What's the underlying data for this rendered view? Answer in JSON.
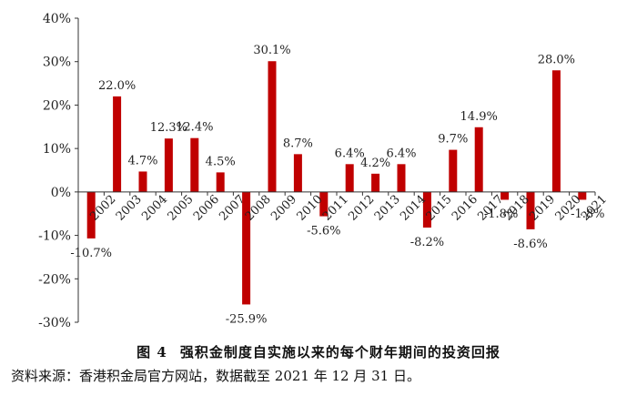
{
  "chart_data": {
    "type": "bar",
    "categories": [
      "2002",
      "2003",
      "2004",
      "2005",
      "2006",
      "2007",
      "2008",
      "2009",
      "2010",
      "2011",
      "2012",
      "2013",
      "2014",
      "2015",
      "2016",
      "2017",
      "2018",
      "2019",
      "2020",
      "2021"
    ],
    "values": [
      -10.7,
      22.0,
      4.7,
      12.3,
      12.4,
      4.5,
      -25.9,
      30.1,
      8.7,
      -5.6,
      6.4,
      4.2,
      6.4,
      -8.2,
      9.7,
      14.9,
      -1.8,
      -8.6,
      28.0,
      -1.8
    ],
    "value_labels": [
      "-10.7%",
      "22.0%",
      "4.7%",
      "12.3%",
      "12.4%",
      "4.5%",
      "-25.9%",
      "30.1%",
      "8.7%",
      "-5.6%",
      "6.4%",
      "4.2%",
      "6.4%",
      "-8.2%",
      "9.7%",
      "14.9%",
      "-1.8%",
      "-8.6%",
      "28.0%",
      "-1.8%"
    ],
    "ylim": [
      -30,
      40
    ],
    "yticks": [
      -30,
      -20,
      -10,
      0,
      10,
      20,
      30,
      40
    ],
    "ytick_labels": [
      "-30%",
      "-20%",
      "-10%",
      "0%",
      "10%",
      "20%",
      "30%",
      "40%"
    ],
    "bar_color": "#c00000",
    "grid": false,
    "legend": "none"
  },
  "caption": {
    "figure_number": "图 4",
    "title": "强积金制度自实施以来的每个财年期间的投资回报"
  },
  "source_note": "资料来源：香港积金局官方网站，数据截至 2021 年 12 月 31 日。"
}
